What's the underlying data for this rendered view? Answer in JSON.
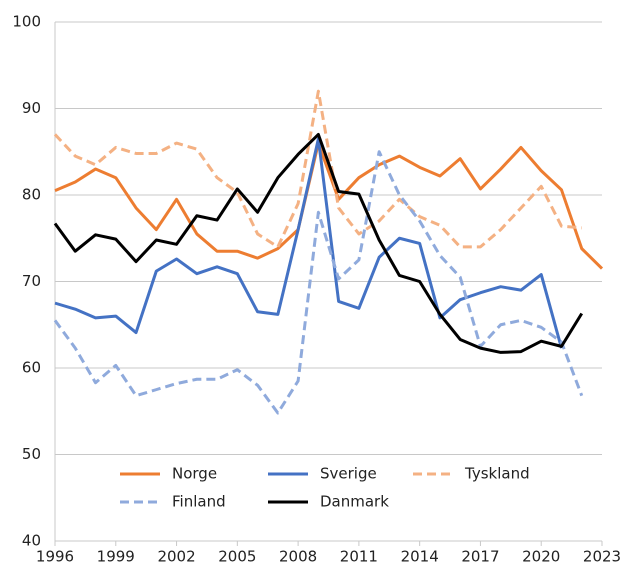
{
  "chart_data": {
    "type": "line",
    "x": [
      1996,
      1997,
      1998,
      1999,
      2000,
      2001,
      2002,
      2003,
      2004,
      2005,
      2006,
      2007,
      2008,
      2009,
      2010,
      2011,
      2012,
      2013,
      2014,
      2015,
      2016,
      2017,
      2018,
      2019,
      2020,
      2021,
      2022,
      2023
    ],
    "xlim": [
      1996,
      2023
    ],
    "xticks": [
      1996,
      1999,
      2002,
      2005,
      2008,
      2011,
      2014,
      2017,
      2020,
      2023
    ],
    "ylim": [
      40,
      100
    ],
    "yticks": [
      40,
      50,
      60,
      70,
      80,
      90,
      100
    ],
    "grid": true,
    "legend": "lower center",
    "series": [
      {
        "name": "Norge",
        "color": "#ed7d31",
        "dashed": false,
        "values": [
          80.5,
          81.5,
          83,
          82,
          78.5,
          76,
          79.5,
          75.5,
          73.5,
          73.5,
          72.7,
          73.8,
          76,
          86,
          79.5,
          82,
          83.5,
          84.5,
          83.2,
          82.2,
          84.2,
          80.7,
          83,
          85.5,
          82.8,
          80.6,
          73.8,
          71.5
        ]
      },
      {
        "name": "Sverige",
        "color": "#4472c4",
        "dashed": false,
        "values": [
          67.5,
          66.8,
          65.8,
          66,
          64.1,
          71.2,
          72.6,
          70.9,
          71.7,
          70.9,
          66.5,
          66.2,
          76,
          86.5,
          67.7,
          66.9,
          72.8,
          75,
          74.4,
          65.8,
          67.9,
          68.7,
          69.4,
          69,
          70.8,
          62.3,
          null,
          null
        ]
      },
      {
        "name": "Tyskland",
        "color": "#f4b183",
        "dashed": true,
        "values": [
          87,
          84.5,
          83.5,
          85.5,
          84.8,
          84.8,
          86,
          85.3,
          82,
          80.3,
          75.5,
          74,
          79,
          92,
          78.5,
          75.5,
          77,
          79.5,
          77.5,
          76.5,
          74,
          74,
          76,
          78.5,
          81,
          76.4,
          76.2,
          null
        ]
      },
      {
        "name": "Finland",
        "color": "#8faadc",
        "dashed": true,
        "values": [
          65.5,
          62.3,
          58.3,
          60.3,
          56.8,
          57.5,
          58.2,
          58.7,
          58.7,
          59.8,
          58,
          54.8,
          58.5,
          78,
          70.3,
          72.5,
          85,
          80,
          77,
          73,
          70.5,
          62.5,
          65,
          65.5,
          64.7,
          63,
          56.8,
          null
        ]
      },
      {
        "name": "Danmark",
        "color": "#000000",
        "dashed": false,
        "values": [
          76.7,
          73.5,
          75.4,
          74.9,
          72.3,
          74.8,
          74.3,
          77.6,
          77.1,
          80.7,
          78,
          82,
          84.7,
          87,
          80.4,
          80.1,
          74.8,
          70.7,
          70,
          66.2,
          63.3,
          62.3,
          61.8,
          61.9,
          63.1,
          62.5,
          66.3,
          null
        ]
      }
    ]
  }
}
